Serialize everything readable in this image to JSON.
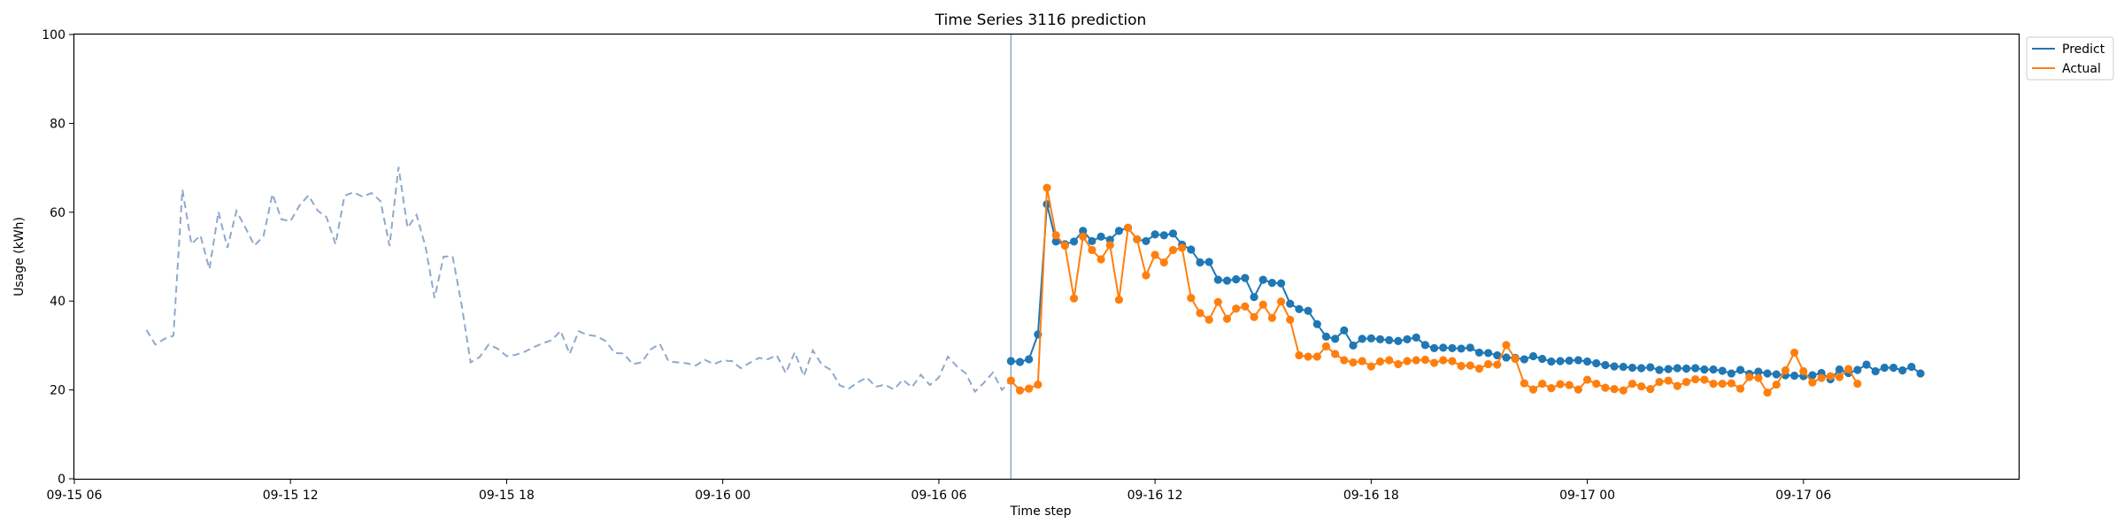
{
  "chart_data": {
    "type": "line",
    "title": "Time Series 3116 prediction",
    "xlabel": "Time step",
    "ylabel": "Usage (kWh)",
    "ylim": [
      0,
      100
    ],
    "yticks": [
      0,
      20,
      40,
      60,
      80,
      100
    ],
    "xlim": [
      "2024-09-15 06:00",
      "2024-09-17 12:00"
    ],
    "xticks": [
      {
        "t": "2024-09-15 06:00",
        "label": "09-15 06"
      },
      {
        "t": "2024-09-15 12:00",
        "label": "09-15 12"
      },
      {
        "t": "2024-09-15 18:00",
        "label": "09-15 18"
      },
      {
        "t": "2024-09-16 00:00",
        "label": "09-16 00"
      },
      {
        "t": "2024-09-16 06:00",
        "label": "09-16 06"
      },
      {
        "t": "2024-09-16 12:00",
        "label": "09-16 12"
      },
      {
        "t": "2024-09-16 18:00",
        "label": "09-16 18"
      },
      {
        "t": "2024-09-17 00:00",
        "label": "09-17 00"
      },
      {
        "t": "2024-09-17 06:00",
        "label": "09-17 06"
      }
    ],
    "legend_position": "top-right outside",
    "split_time": "2024-09-16 08:00",
    "colors": {
      "history": "#8fa9cc",
      "predict": "#1f77b4",
      "actual": "#ff7f0e",
      "split": "#8fa9cc"
    },
    "history": {
      "start": "2024-09-15 08:00",
      "step_minutes": 15,
      "values": [
        33.5,
        30.2,
        31.5,
        32.2,
        65.1,
        52.8,
        54.8,
        47.2,
        60.1,
        52.0,
        60.3,
        56.5,
        52.5,
        54.6,
        64.1,
        58.4,
        58.0,
        61.5,
        63.8,
        60.4,
        58.9,
        52.8,
        63.7,
        64.5,
        63.5,
        64.3,
        62.5,
        52.4,
        70.2,
        56.5,
        59.4,
        52.2,
        40.7,
        50.0,
        50.1,
        39.2,
        26.2,
        27.4,
        30.2,
        29.3,
        27.6,
        27.9,
        28.6,
        29.6,
        30.5,
        31.2,
        33.3,
        28.1,
        33.2,
        32.4,
        32.1,
        31.0,
        28.3,
        28.2,
        25.8,
        26.2,
        29.1,
        30.4,
        26.4,
        26.2,
        26.0,
        25.5,
        26.8,
        25.8,
        26.6,
        26.5,
        24.9,
        26.1,
        27.2,
        26.9,
        27.8,
        23.8,
        28.5,
        23.1,
        28.9,
        25.7,
        24.5,
        21.0,
        20.3,
        21.7,
        22.8,
        20.7,
        21.2,
        20.1,
        22.3,
        20.6,
        23.4,
        21.1,
        22.8,
        27.5,
        25.3,
        23.7,
        19.6,
        21.6,
        23.9,
        20.0,
        22.2
      ]
    },
    "series": [
      {
        "name": "Predict",
        "start": "2024-09-16 08:00",
        "step_minutes": 15,
        "values": [
          26.5,
          26.3,
          26.9,
          32.5,
          61.8,
          53.4,
          52.8,
          53.4,
          55.8,
          53.5,
          54.5,
          53.8,
          55.8,
          56.5,
          53.9,
          53.5,
          55.0,
          54.8,
          55.2,
          52.7,
          51.6,
          48.7,
          48.8,
          44.8,
          44.6,
          44.9,
          45.2,
          40.9,
          44.8,
          44.1,
          44.0,
          39.4,
          38.2,
          37.8,
          34.8,
          32.0,
          31.5,
          33.4,
          30.0,
          31.5,
          31.6,
          31.4,
          31.2,
          31.0,
          31.4,
          31.8,
          30.1,
          29.4,
          29.5,
          29.4,
          29.3,
          29.5,
          28.4,
          28.3,
          27.8,
          27.3,
          27.2,
          26.9,
          27.6,
          27.0,
          26.4,
          26.5,
          26.6,
          26.7,
          26.4,
          26.0,
          25.6,
          25.3,
          25.2,
          25.0,
          24.9,
          25.1,
          24.5,
          24.7,
          24.9,
          24.8,
          24.9,
          24.6,
          24.6,
          24.3,
          23.7,
          24.5,
          23.6,
          24.1,
          23.7,
          23.5,
          23.3,
          23.2,
          23.1,
          23.3,
          23.8,
          22.4,
          24.6,
          23.8,
          24.5,
          25.7,
          24.2,
          25.0,
          25.0,
          24.4,
          25.2,
          23.7
        ]
      },
      {
        "name": "Actual",
        "start": "2024-09-16 08:00",
        "step_minutes": 15,
        "values": [
          22.1,
          19.9,
          20.3,
          21.2,
          65.5,
          54.8,
          52.5,
          40.6,
          54.5,
          51.5,
          49.4,
          52.6,
          40.3,
          56.5,
          53.9,
          45.8,
          50.4,
          48.7,
          51.5,
          52.0,
          40.7,
          37.3,
          35.8,
          39.8,
          36.0,
          38.3,
          38.8,
          36.4,
          39.2,
          36.2,
          39.9,
          35.8,
          27.8,
          27.5,
          27.5,
          29.8,
          28.1,
          26.7,
          26.2,
          26.5,
          25.3,
          26.4,
          26.7,
          25.8,
          26.5,
          26.7,
          26.8,
          26.1,
          26.7,
          26.5,
          25.4,
          25.5,
          24.8,
          25.8,
          25.7,
          30.1,
          27.0,
          21.5,
          20.1,
          21.4,
          20.4,
          21.3,
          21.1,
          20.1,
          22.3,
          21.4,
          20.5,
          20.2,
          19.9,
          21.4,
          20.8,
          20.2,
          21.8,
          22.1,
          20.9,
          21.8,
          22.4,
          22.3,
          21.4,
          21.4,
          21.5,
          20.3,
          22.9,
          22.7,
          19.4,
          21.2,
          24.4,
          28.4,
          24.2,
          21.7,
          22.7,
          23.1,
          22.9,
          24.7,
          21.4
        ]
      }
    ]
  }
}
